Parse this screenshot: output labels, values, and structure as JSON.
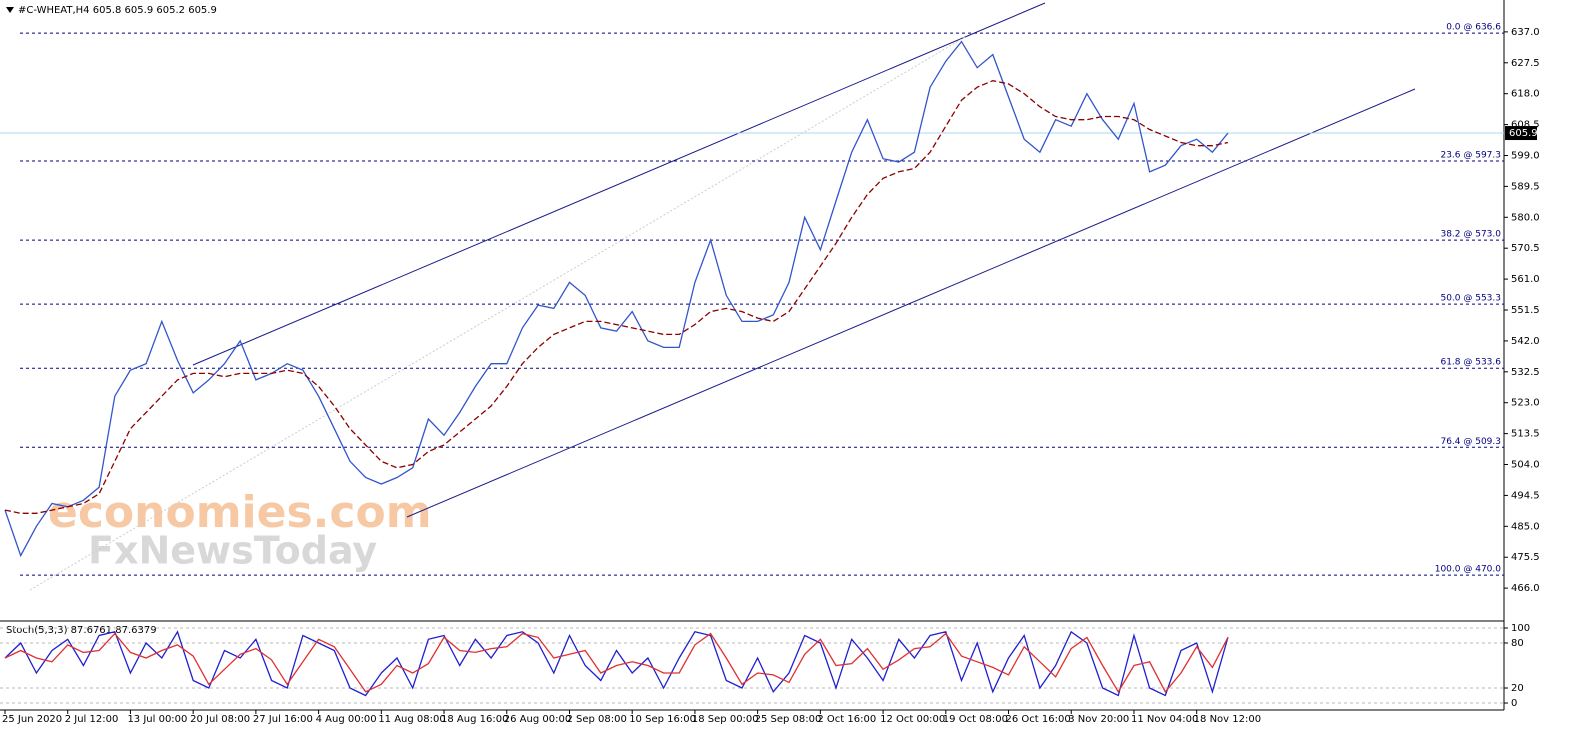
{
  "symbol": "#C-WHEAT,H4",
  "ohlc": [
    605.8,
    605.9,
    605.2,
    605.9
  ],
  "watermark": [
    "economies.com",
    "FxNewsToday"
  ],
  "chart_data": [
    {
      "type": "line",
      "categories": [
        "25 Jun 2020",
        null,
        null,
        null,
        "2 Jul 12:00",
        null,
        null,
        null,
        "13 Jul 00:00",
        null,
        null,
        null,
        "20 Jul 08:00",
        null,
        null,
        null,
        "27 Jul 16:00",
        null,
        null,
        null,
        "4 Aug 00:00",
        null,
        null,
        null,
        "11 Aug 08:00",
        null,
        null,
        null,
        "18 Aug 16:00",
        null,
        null,
        null,
        "26 Aug 00:00",
        null,
        null,
        null,
        "2 Sep 08:00",
        null,
        null,
        null,
        "10 Sep 16:00",
        null,
        null,
        null,
        "18 Sep 00:00",
        null,
        null,
        null,
        "25 Sep 08:00",
        null,
        null,
        null,
        "2 Oct 16:00",
        null,
        null,
        null,
        "12 Oct 00:00",
        null,
        null,
        null,
        "19 Oct 08:00",
        null,
        null,
        null,
        "26 Oct 16:00",
        null,
        null,
        null,
        "3 Nov 20:00",
        null,
        null,
        null,
        "11 Nov 04:00",
        null,
        null,
        null,
        "18 Nov 12:00",
        null,
        null
      ],
      "series": [
        {
          "color": "#3355cc",
          "values": [
            490,
            476,
            485,
            492,
            491,
            493,
            497,
            525,
            533,
            535,
            548,
            536,
            526,
            530,
            535,
            542,
            530,
            532,
            535,
            533,
            525,
            515,
            505,
            500,
            498,
            500,
            503,
            518,
            513,
            520,
            528,
            535,
            535,
            546,
            553,
            552,
            560,
            556,
            546,
            545,
            551,
            542,
            540,
            540,
            560,
            573,
            556,
            548,
            548,
            550,
            560,
            580,
            570,
            585,
            600,
            610,
            598,
            597,
            600,
            620,
            628,
            634,
            626,
            630,
            617,
            604,
            600,
            610,
            608,
            618,
            610,
            604,
            615,
            594,
            596,
            602,
            604,
            600,
            605.9
          ]
        },
        {
          "color": "#8b0000",
          "dashed": true,
          "values": [
            490,
            489,
            489,
            490,
            491,
            492,
            495,
            505,
            515,
            520,
            525,
            530,
            532,
            532,
            531,
            532,
            532,
            532,
            533,
            532,
            528,
            522,
            515,
            510,
            505,
            503,
            504,
            508,
            510,
            514,
            518,
            522,
            528,
            535,
            540,
            544,
            546,
            548,
            548,
            547,
            546,
            545,
            544,
            544,
            547,
            551,
            552,
            551,
            549,
            548,
            551,
            558,
            565,
            572,
            580,
            587,
            592,
            594,
            595,
            600,
            608,
            616,
            620,
            622,
            621,
            618,
            614,
            611,
            610,
            610,
            611,
            611,
            610,
            607,
            605,
            603,
            602,
            602,
            603
          ]
        }
      ],
      "ylim": [
        456.2,
        646.8
      ],
      "yticks": [
        {
          "value": 637,
          "label": "637.0"
        },
        627.5,
        {
          "value": 618,
          "label": "618.0"
        },
        608.5,
        {
          "value": 599,
          "label": "599.0"
        },
        589.5,
        {
          "value": 580,
          "label": "580.0"
        },
        570.5,
        {
          "value": 561,
          "label": "561.0"
        },
        551.5,
        {
          "value": 542,
          "label": "542.0"
        },
        532.5,
        {
          "value": 523,
          "label": "523.0"
        },
        513.5,
        {
          "value": 504,
          "label": "504.0"
        },
        494.5,
        {
          "value": 485,
          "label": "485.0"
        },
        475.5,
        {
          "value": 466,
          "label": "466.0"
        }
      ],
      "last_price": 605.9,
      "fib_levels": [
        {
          "value": 636.6,
          "label": "0.0 @ 636.6"
        },
        {
          "value": 597.3,
          "label": "23.6 @ 597.3"
        },
        {
          "value": 573.0,
          "label": "38.2 @ 573.0"
        },
        {
          "value": 553.3,
          "label": "50.0 @ 553.3"
        },
        {
          "value": 533.6,
          "label": "61.8 @ 533.6"
        },
        {
          "value": 509.3,
          "label": "76.4 @ 509.3"
        },
        {
          "value": 470.0,
          "label": "100.0 @ 470.0"
        }
      ]
    },
    {
      "type": "line",
      "title": "Stoch(5,3,3)",
      "series": [
        {
          "color": "#2020d0",
          "values": [
            60,
            80,
            40,
            70,
            85,
            50,
            90,
            95,
            40,
            80,
            60,
            95,
            30,
            20,
            70,
            60,
            85,
            30,
            20,
            90,
            80,
            70,
            20,
            10,
            40,
            60,
            20,
            85,
            90,
            50,
            85,
            60,
            90,
            95,
            80,
            40,
            90,
            50,
            30,
            70,
            40,
            60,
            20,
            60,
            95,
            90,
            30,
            20,
            60,
            15,
            40,
            90,
            80,
            20,
            85,
            60,
            30,
            85,
            60,
            90,
            95,
            30,
            80,
            15,
            60,
            90,
            20,
            50,
            95,
            80,
            20,
            10,
            90,
            20,
            10,
            70,
            80,
            15,
            87.6761
          ]
        },
        {
          "color": "#e03030",
          "values": [
            60,
            70,
            60,
            55,
            77.5,
            67.5,
            70,
            92.5,
            67.5,
            60,
            70,
            77.5,
            62.5,
            25,
            45,
            65,
            72.5,
            57.5,
            25,
            55,
            85,
            75,
            45,
            15,
            25,
            50,
            40,
            52.5,
            87.5,
            70,
            67.5,
            72.5,
            75,
            92.5,
            87.5,
            60,
            65,
            70,
            40,
            50,
            55,
            50,
            40,
            40,
            77.5,
            92.5,
            60,
            25,
            40,
            37.5,
            27.5,
            65,
            85,
            50,
            52.5,
            72.5,
            45,
            57.5,
            72.5,
            75,
            92.5,
            62.5,
            55,
            47.5,
            37.5,
            75,
            55,
            35,
            72.5,
            87.5,
            50,
            15,
            50,
            55,
            15,
            40,
            75,
            47.5,
            87.6379
          ]
        }
      ],
      "ylim": [
        -9.3,
        108
      ],
      "yticks": [
        100,
        80,
        20,
        0
      ]
    }
  ]
}
